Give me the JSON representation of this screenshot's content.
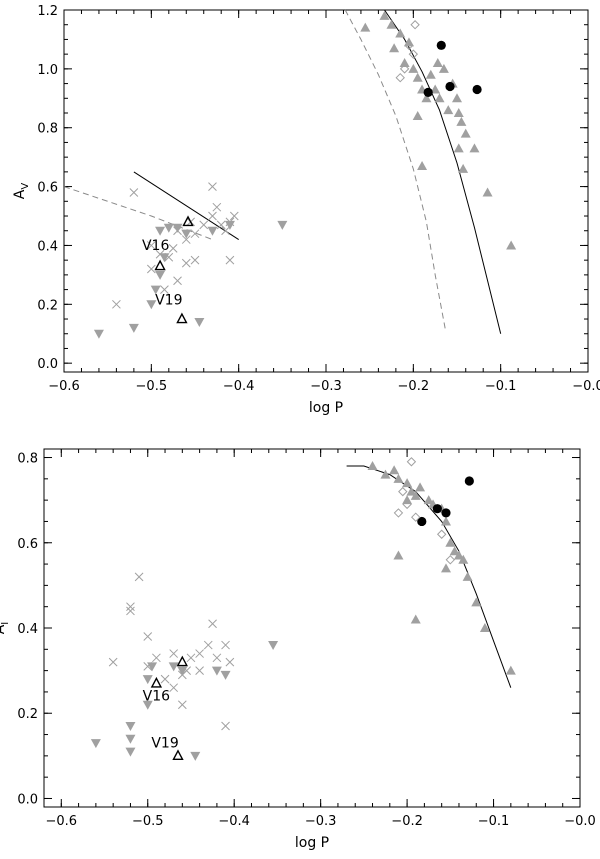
{
  "chart_data": [
    {
      "type": "scatter",
      "xlabel": "log P",
      "ylabel": "A",
      "ylabel_sub": "V",
      "xlim": [
        -0.6,
        0.0
      ],
      "ylim": [
        -0.03,
        1.2
      ],
      "xticks": [
        -0.6,
        -0.5,
        -0.4,
        -0.3,
        -0.2,
        -0.1,
        0.0
      ],
      "xticklabels": [
        "−0.6",
        "−0.5",
        "−0.4",
        "−0.3",
        "−0.2",
        "−0.1",
        "−0.0"
      ],
      "yticks": [
        0.0,
        0.2,
        0.4,
        0.6,
        0.8,
        1.0,
        1.2
      ],
      "yticklabels": [
        "0.0",
        "0.2",
        "0.4",
        "0.6",
        "0.8",
        "1.0",
        "1.2"
      ],
      "grid": false,
      "annotations": [
        {
          "text": "V16",
          "x": -0.495,
          "y": 0.385
        },
        {
          "text": "V19",
          "x": -0.48,
          "y": 0.2
        }
      ],
      "series": [
        {
          "marker": "triangle-up-filled",
          "color": "#a0a0a0",
          "points": [
            [
              -0.233,
              1.18
            ],
            [
              -0.225,
              1.15
            ],
            [
              -0.215,
              1.12
            ],
            [
              -0.222,
              1.07
            ],
            [
              -0.205,
              1.09
            ],
            [
              -0.21,
              1.02
            ],
            [
              -0.2,
              1.0
            ],
            [
              -0.195,
              0.97
            ],
            [
              -0.19,
              0.93
            ],
            [
              -0.185,
              0.9
            ],
            [
              -0.18,
              0.98
            ],
            [
              -0.172,
              1.02
            ],
            [
              -0.165,
              1.0
            ],
            [
              -0.155,
              0.95
            ],
            [
              -0.15,
              0.9
            ],
            [
              -0.16,
              0.86
            ],
            [
              -0.148,
              0.85
            ],
            [
              -0.145,
              0.82
            ],
            [
              -0.14,
              0.78
            ],
            [
              -0.148,
              0.73
            ],
            [
              -0.13,
              0.73
            ],
            [
              -0.17,
              0.9
            ],
            [
              -0.175,
              0.93
            ],
            [
              -0.195,
              0.84
            ],
            [
              -0.19,
              0.67
            ],
            [
              -0.115,
              0.58
            ],
            [
              -0.088,
              0.4
            ],
            [
              -0.143,
              0.66
            ],
            [
              -0.255,
              1.14
            ]
          ]
        },
        {
          "marker": "circle-filled",
          "color": "#000000",
          "points": [
            [
              -0.168,
              1.08
            ],
            [
              -0.183,
              0.92
            ],
            [
              -0.158,
              0.94
            ],
            [
              -0.127,
              0.93
            ]
          ]
        },
        {
          "marker": "diamond-open",
          "color": "#a0a0a0",
          "points": [
            [
              -0.198,
              1.15
            ],
            [
              -0.205,
              1.08
            ],
            [
              -0.2,
              1.05
            ],
            [
              -0.21,
              1.0
            ],
            [
              -0.215,
              0.97
            ]
          ]
        },
        {
          "marker": "triangle-down-filled",
          "color": "#a0a0a0",
          "points": [
            [
              -0.56,
              0.1
            ],
            [
              -0.52,
              0.12
            ],
            [
              -0.5,
              0.2
            ],
            [
              -0.495,
              0.25
            ],
            [
              -0.49,
              0.3
            ],
            [
              -0.485,
              0.36
            ],
            [
              -0.49,
              0.45
            ],
            [
              -0.47,
              0.46
            ],
            [
              -0.445,
              0.14
            ],
            [
              -0.46,
              0.44
            ],
            [
              -0.43,
              0.45
            ],
            [
              -0.41,
              0.47
            ],
            [
              -0.35,
              0.47
            ],
            [
              -0.48,
              0.46
            ]
          ]
        },
        {
          "marker": "cross",
          "color": "#a0a0a0",
          "points": [
            [
              -0.52,
              0.58
            ],
            [
              -0.54,
              0.2
            ],
            [
              -0.5,
              0.4
            ],
            [
              -0.49,
              0.37
            ],
            [
              -0.48,
              0.36
            ],
            [
              -0.475,
              0.39
            ],
            [
              -0.47,
              0.45
            ],
            [
              -0.46,
              0.42
            ],
            [
              -0.455,
              0.48
            ],
            [
              -0.45,
              0.44
            ],
            [
              -0.44,
              0.47
            ],
            [
              -0.43,
              0.5
            ],
            [
              -0.425,
              0.53
            ],
            [
              -0.42,
              0.47
            ],
            [
              -0.415,
              0.45
            ],
            [
              -0.41,
              0.48
            ],
            [
              -0.405,
              0.5
            ],
            [
              -0.43,
              0.6
            ],
            [
              -0.45,
              0.35
            ],
            [
              -0.47,
              0.28
            ],
            [
              -0.485,
              0.25
            ],
            [
              -0.41,
              0.35
            ],
            [
              -0.5,
              0.32
            ],
            [
              -0.46,
              0.34
            ]
          ]
        },
        {
          "marker": "triangle-up-open",
          "color": "#000000",
          "points": [
            [
              -0.458,
              0.48
            ],
            [
              -0.49,
              0.33
            ],
            [
              -0.465,
              0.15
            ]
          ]
        }
      ],
      "curves": [
        {
          "style": "solid",
          "points": [
            [
              -0.52,
              0.65
            ],
            [
              -0.4,
              0.42
            ]
          ]
        },
        {
          "style": "dashed",
          "points": [
            [
              -0.6,
              0.6
            ],
            [
              -0.5,
              0.5
            ],
            [
              -0.43,
              0.42
            ]
          ]
        },
        {
          "style": "solid",
          "points": [
            [
              -0.233,
              1.2
            ],
            [
              -0.21,
              1.1
            ],
            [
              -0.19,
              0.99
            ],
            [
              -0.17,
              0.86
            ],
            [
              -0.15,
              0.68
            ],
            [
              -0.13,
              0.46
            ],
            [
              -0.115,
              0.28
            ],
            [
              -0.1,
              0.1
            ]
          ]
        },
        {
          "style": "dashed",
          "points": [
            [
              -0.278,
              1.2
            ],
            [
              -0.26,
              1.1
            ],
            [
              -0.24,
              0.98
            ],
            [
              -0.22,
              0.84
            ],
            [
              -0.2,
              0.66
            ],
            [
              -0.185,
              0.48
            ],
            [
              -0.175,
              0.3
            ],
            [
              -0.163,
              0.11
            ]
          ]
        }
      ]
    },
    {
      "type": "scatter",
      "xlabel": "log P",
      "ylabel": "A",
      "ylabel_sub": "I",
      "xlim": [
        -0.62,
        0.0
      ],
      "ylim": [
        -0.02,
        0.82
      ],
      "xticks": [
        -0.6,
        -0.5,
        -0.4,
        -0.3,
        -0.2,
        -0.1,
        0.0
      ],
      "xticklabels": [
        "−0.6",
        "−0.5",
        "−0.4",
        "−0.3",
        "−0.2",
        "−0.1",
        "−0.0"
      ],
      "yticks": [
        0.0,
        0.2,
        0.4,
        0.6,
        0.8
      ],
      "yticklabels": [
        "0.0",
        "0.2",
        "0.4",
        "0.6",
        "0.8"
      ],
      "grid": false,
      "annotations": [
        {
          "text": "V16",
          "x": -0.49,
          "y": 0.23
        },
        {
          "text": "V19",
          "x": -0.48,
          "y": 0.12
        }
      ],
      "series": [
        {
          "marker": "triangle-up-filled",
          "color": "#a0a0a0",
          "points": [
            [
              -0.24,
              0.78
            ],
            [
              -0.225,
              0.76
            ],
            [
              -0.215,
              0.77
            ],
            [
              -0.21,
              0.75
            ],
            [
              -0.2,
              0.74
            ],
            [
              -0.195,
              0.72
            ],
            [
              -0.19,
              0.71
            ],
            [
              -0.185,
              0.73
            ],
            [
              -0.175,
              0.7
            ],
            [
              -0.17,
              0.69
            ],
            [
              -0.16,
              0.68
            ],
            [
              -0.155,
              0.65
            ],
            [
              -0.15,
              0.6
            ],
            [
              -0.145,
              0.58
            ],
            [
              -0.14,
              0.57
            ],
            [
              -0.135,
              0.56
            ],
            [
              -0.13,
              0.52
            ],
            [
              -0.12,
              0.46
            ],
            [
              -0.21,
              0.57
            ],
            [
              -0.19,
              0.42
            ],
            [
              -0.11,
              0.4
            ],
            [
              -0.08,
              0.3
            ],
            [
              -0.155,
              0.54
            ],
            [
              -0.2,
              0.7
            ]
          ]
        },
        {
          "marker": "circle-filled",
          "color": "#000000",
          "points": [
            [
              -0.128,
              0.745
            ],
            [
              -0.165,
              0.68
            ],
            [
              -0.155,
              0.67
            ],
            [
              -0.183,
              0.65
            ]
          ]
        },
        {
          "marker": "diamond-open",
          "color": "#a0a0a0",
          "points": [
            [
              -0.195,
              0.79
            ],
            [
              -0.205,
              0.72
            ],
            [
              -0.2,
              0.69
            ],
            [
              -0.21,
              0.67
            ],
            [
              -0.19,
              0.66
            ],
            [
              -0.16,
              0.62
            ],
            [
              -0.15,
              0.56
            ]
          ]
        },
        {
          "marker": "triangle-down-filled",
          "color": "#a0a0a0",
          "points": [
            [
              -0.56,
              0.13
            ],
            [
              -0.52,
              0.14
            ],
            [
              -0.52,
              0.11
            ],
            [
              -0.52,
              0.17
            ],
            [
              -0.5,
              0.22
            ],
            [
              -0.495,
              0.31
            ],
            [
              -0.47,
              0.31
            ],
            [
              -0.445,
              0.1
            ],
            [
              -0.41,
              0.29
            ],
            [
              -0.355,
              0.36
            ],
            [
              -0.42,
              0.3
            ],
            [
              -0.46,
              0.3
            ],
            [
              -0.5,
              0.28
            ]
          ]
        },
        {
          "marker": "cross",
          "color": "#a0a0a0",
          "points": [
            [
              -0.51,
              0.52
            ],
            [
              -0.52,
              0.45
            ],
            [
              -0.52,
              0.44
            ],
            [
              -0.5,
              0.38
            ],
            [
              -0.5,
              0.31
            ],
            [
              -0.49,
              0.33
            ],
            [
              -0.48,
              0.28
            ],
            [
              -0.47,
              0.26
            ],
            [
              -0.46,
              0.29
            ],
            [
              -0.455,
              0.3
            ],
            [
              -0.45,
              0.33
            ],
            [
              -0.44,
              0.34
            ],
            [
              -0.43,
              0.36
            ],
            [
              -0.425,
              0.41
            ],
            [
              -0.42,
              0.33
            ],
            [
              -0.41,
              0.36
            ],
            [
              -0.405,
              0.32
            ],
            [
              -0.41,
              0.17
            ],
            [
              -0.46,
              0.22
            ],
            [
              -0.54,
              0.32
            ],
            [
              -0.47,
              0.34
            ],
            [
              -0.44,
              0.3
            ]
          ]
        },
        {
          "marker": "triangle-up-open",
          "color": "#000000",
          "points": [
            [
              -0.46,
              0.32
            ],
            [
              -0.49,
              0.27
            ],
            [
              -0.465,
              0.1
            ]
          ]
        }
      ],
      "curves": [
        {
          "style": "solid",
          "points": [
            [
              -0.27,
              0.78
            ],
            [
              -0.25,
              0.78
            ],
            [
              -0.22,
              0.76
            ],
            [
              -0.19,
              0.72
            ],
            [
              -0.16,
              0.65
            ],
            [
              -0.14,
              0.58
            ],
            [
              -0.12,
              0.48
            ],
            [
              -0.1,
              0.37
            ],
            [
              -0.08,
              0.26
            ]
          ]
        }
      ]
    }
  ]
}
